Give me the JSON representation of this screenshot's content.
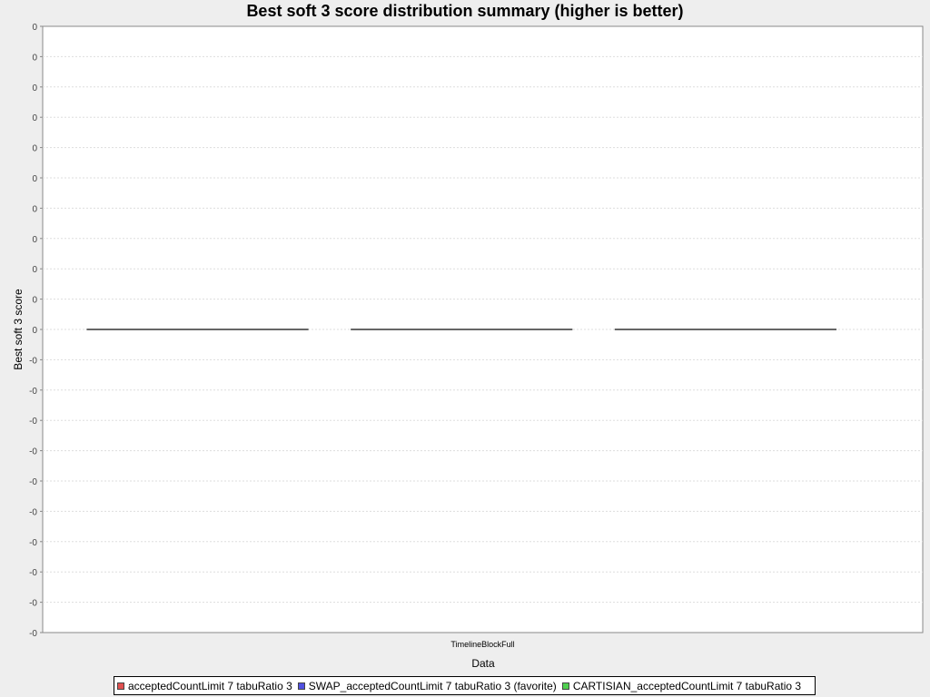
{
  "chart_data": {
    "type": "box",
    "title": "Best soft 3 score distribution summary (higher is better)",
    "xlabel": "Data",
    "ylabel": "Best soft 3 score",
    "categories": [
      "TimelineBlockFull"
    ],
    "y_ticks": [
      "0",
      "0",
      "0",
      "0",
      "0",
      "0",
      "0",
      "0",
      "0",
      "0",
      "0",
      "-0",
      "-0",
      "-0",
      "-0",
      "-0",
      "-0",
      "-0",
      "-0",
      "-0",
      "-0"
    ],
    "grid": true,
    "legend_position": "bottom",
    "series": [
      {
        "name": "acceptedCountLimit 7 tabuRatio 3",
        "color": "#e05050",
        "values": [
          0
        ]
      },
      {
        "name": "SWAP_acceptedCountLimit 7 tabuRatio 3 (favorite)",
        "color": "#5050e0",
        "values": [
          0
        ]
      },
      {
        "name": "CARTISIAN_acceptedCountLimit 7 tabuRatio 3",
        "color": "#50d050",
        "values": [
          0
        ]
      }
    ]
  }
}
